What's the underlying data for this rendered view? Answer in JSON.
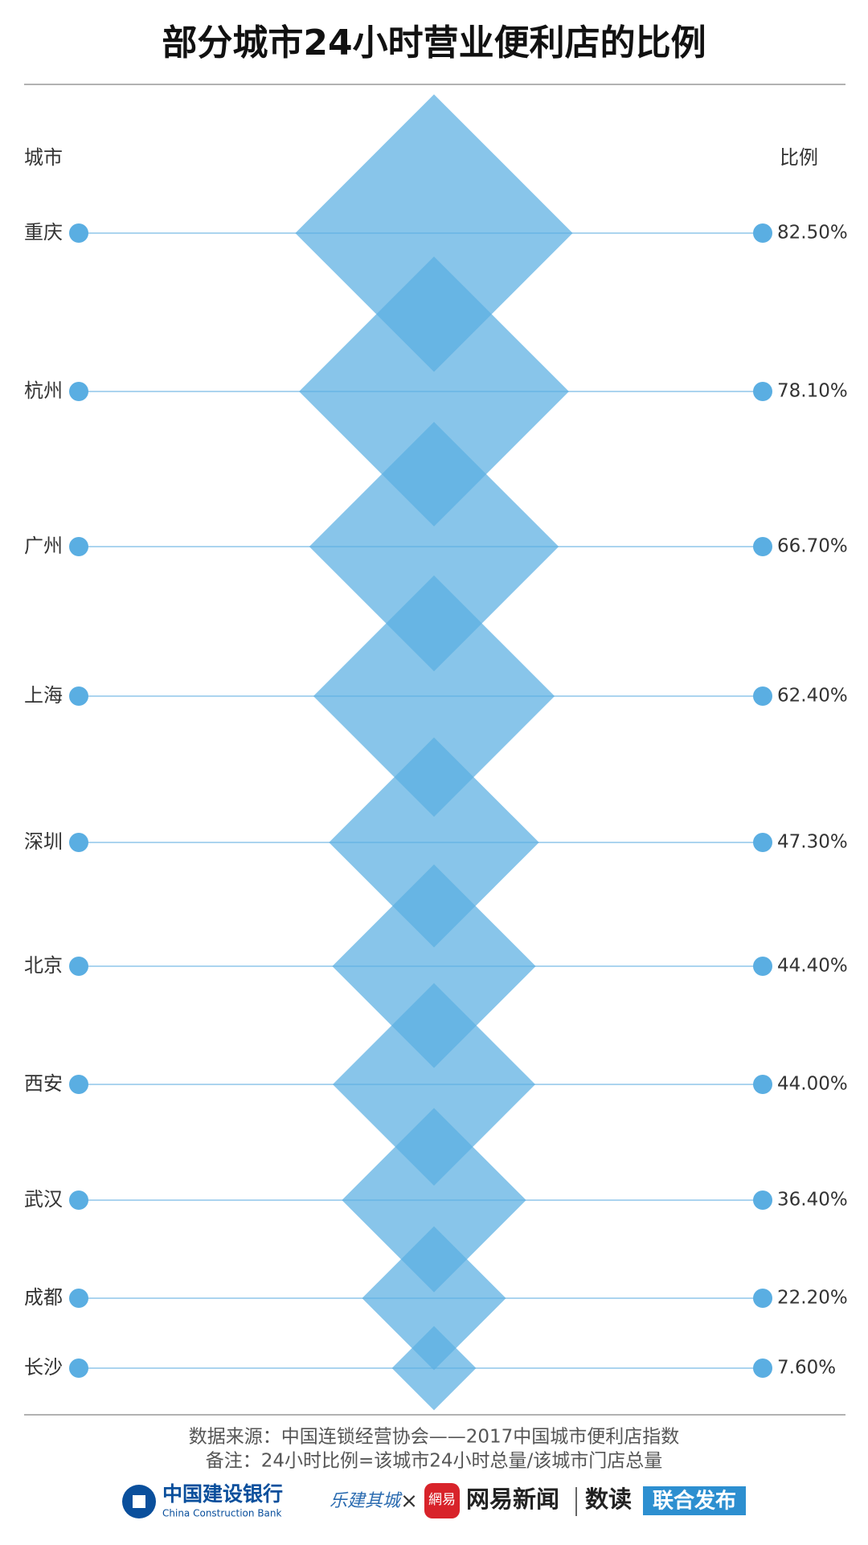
{
  "chart_data": {
    "type": "diamond",
    "title": "部分城市24小时营业便利店的比例",
    "category_header": "城市",
    "value_header": "比例",
    "categories": [
      "重庆",
      "杭州",
      "广州",
      "上海",
      "深圳",
      "北京",
      "西安",
      "武汉",
      "成都",
      "长沙"
    ],
    "values": [
      82.5,
      78.1,
      66.7,
      62.4,
      47.3,
      44.4,
      44.0,
      36.4,
      22.2,
      7.6
    ],
    "value_labels": [
      "82.50%",
      "78.10%",
      "66.70%",
      "62.40%",
      "47.30%",
      "44.40%",
      "44.00%",
      "36.40%",
      "22.20%",
      "7.60%"
    ],
    "color": "#5aaee2"
  },
  "footer": {
    "source": "数据来源：中国连锁经营协会——2017中国城市便利店指数",
    "note": "备注：24小时比例=该城市24小时总量/该城市门店总量",
    "bank": "中国建设银行",
    "bank_en": "China Construction Bank",
    "partner": "乐建其城",
    "times": "×",
    "netease_logo": "網易",
    "netease": "网易新闻",
    "shudu": "数读",
    "release": "联合发布"
  }
}
